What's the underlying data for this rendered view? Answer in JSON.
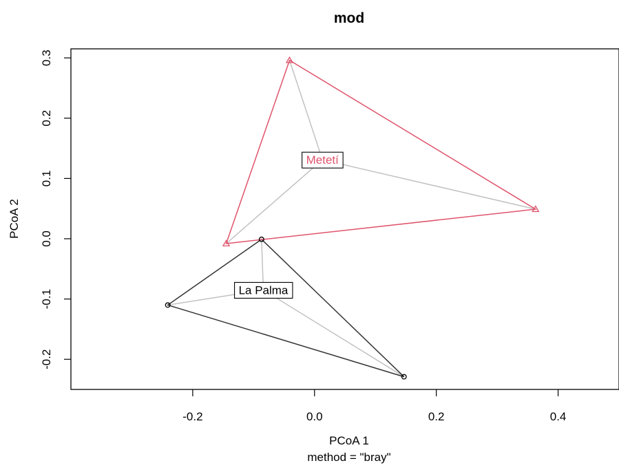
{
  "chart_data": {
    "type": "scatter",
    "title": "mod",
    "xlabel": "PCoA 1",
    "xsublabel": "method = \"bray\"",
    "ylabel": "PCoA 2",
    "xlim": [
      -0.4,
      0.5
    ],
    "ylim": [
      -0.25,
      0.315
    ],
    "x_ticks": [
      {
        "value": -0.2,
        "label": "-0.2"
      },
      {
        "value": 0.0,
        "label": "0.0"
      },
      {
        "value": 0.2,
        "label": "0.2"
      },
      {
        "value": 0.4,
        "label": "0.4"
      }
    ],
    "y_ticks": [
      {
        "value": -0.2,
        "label": "-0.2"
      },
      {
        "value": -0.1,
        "label": "-0.1"
      },
      {
        "value": 0.0,
        "label": "0.0"
      },
      {
        "value": 0.1,
        "label": "0.1"
      },
      {
        "value": 0.2,
        "label": "0.2"
      },
      {
        "value": 0.3,
        "label": "0.3"
      }
    ],
    "grid": false,
    "groups": [
      {
        "name": "La Palma",
        "color": "#000000",
        "hull_color": "#333333",
        "marker": "circle",
        "centroid": [
          -0.084,
          -0.085
        ],
        "points": [
          [
            -0.087,
            -0.001
          ],
          [
            -0.241,
            -0.11
          ],
          [
            0.147,
            -0.229
          ]
        ]
      },
      {
        "name": "Metetí",
        "color": "#DF536B",
        "hull_color": "#DF536B",
        "marker": "triangle",
        "centroid": [
          0.013,
          0.131
        ],
        "points": [
          [
            -0.041,
            0.296
          ],
          [
            -0.145,
            -0.008
          ],
          [
            0.363,
            0.049
          ]
        ]
      }
    ],
    "spider_color": "#BEBEBE"
  }
}
